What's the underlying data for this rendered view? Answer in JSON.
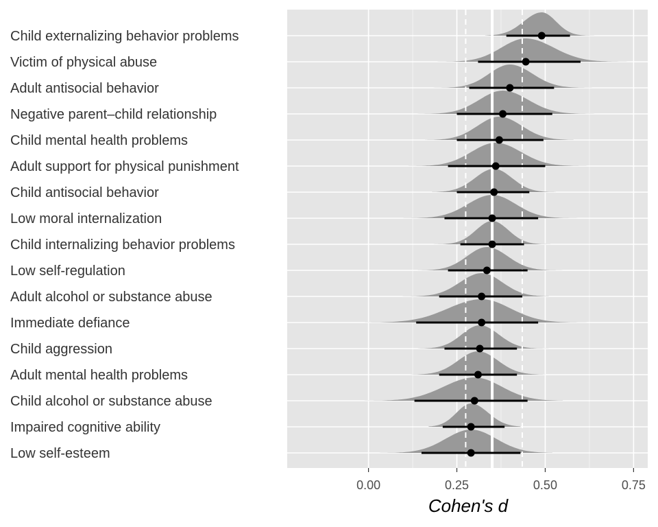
{
  "chart_data": {
    "type": "forest-density",
    "xlabel": "Cohen's d",
    "xlim": [
      -0.23,
      0.79
    ],
    "xticks": [
      0.0,
      0.25,
      0.5,
      0.75
    ],
    "xtick_labels": [
      "0.00",
      "0.25",
      "0.50",
      "0.75"
    ],
    "reference_lines": {
      "pooled_estimate": 0.35,
      "ci_lower": 0.275,
      "ci_upper": 0.435
    },
    "grid": true,
    "colors": {
      "panel_background": "#e5e5e5",
      "gridline": "#ffffff",
      "density_fill": "#999999",
      "interval": "#000000",
      "point": "#000000",
      "reference_line": "#ffffff"
    },
    "categories": [
      "Child externalizing behavior problems",
      "Victim of physical abuse",
      "Adult antisocial behavior",
      "Negative parent–child relationship",
      "Child mental health problems",
      "Adult support for physical punishment",
      "Child antisocial behavior",
      "Low moral internalization",
      "Child internalizing behavior problems",
      "Low self-regulation",
      "Adult alcohol or substance abuse",
      "Immediate defiance",
      "Child aggression",
      "Adult mental health problems",
      "Child alcohol or substance abuse",
      "Impaired cognitive ability",
      "Low self-esteem"
    ],
    "estimates": [
      0.49,
      0.445,
      0.4,
      0.38,
      0.37,
      0.36,
      0.355,
      0.35,
      0.35,
      0.335,
      0.32,
      0.32,
      0.315,
      0.31,
      0.3,
      0.29,
      0.29
    ],
    "interval_low": [
      0.39,
      0.31,
      0.285,
      0.25,
      0.25,
      0.225,
      0.25,
      0.215,
      0.26,
      0.225,
      0.2,
      0.135,
      0.215,
      0.2,
      0.13,
      0.21,
      0.15
    ],
    "interval_high": [
      0.57,
      0.6,
      0.525,
      0.52,
      0.495,
      0.5,
      0.455,
      0.48,
      0.44,
      0.45,
      0.435,
      0.48,
      0.42,
      0.42,
      0.45,
      0.385,
      0.43
    ],
    "density_low": [
      0.33,
      0.18,
      0.15,
      0.1,
      0.16,
      0.11,
      0.18,
      0.09,
      0.18,
      0.14,
      0.09,
      -0.01,
      0.14,
      0.12,
      -0.02,
      0.17,
      0.03
    ],
    "density_high": [
      0.64,
      0.74,
      0.64,
      0.66,
      0.58,
      0.62,
      0.53,
      0.61,
      0.52,
      0.55,
      0.51,
      0.62,
      0.52,
      0.5,
      0.55,
      0.43,
      0.52
    ]
  }
}
